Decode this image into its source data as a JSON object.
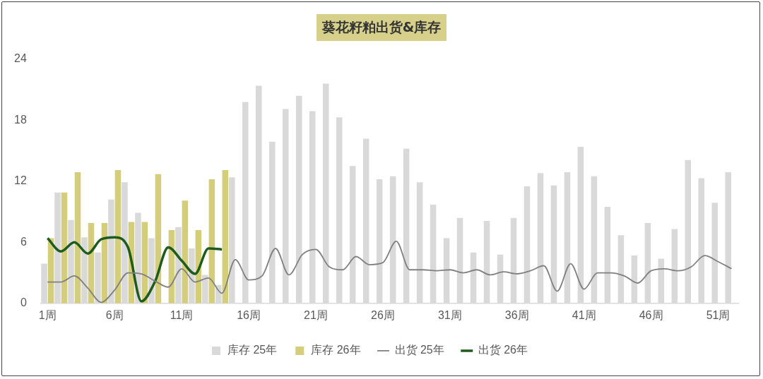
{
  "chart_data": {
    "type": "bar",
    "title": "葵花籽粕出货&库存",
    "categories": [
      "1周",
      null,
      null,
      null,
      null,
      "6周",
      null,
      null,
      null,
      null,
      "11周",
      null,
      null,
      null,
      null,
      "16周",
      null,
      null,
      null,
      null,
      "21周",
      null,
      null,
      null,
      null,
      "26周",
      null,
      null,
      null,
      null,
      "31周",
      null,
      null,
      null,
      null,
      "36周",
      null,
      null,
      null,
      null,
      "41周",
      null,
      null,
      null,
      null,
      "46周",
      null,
      null,
      null,
      null,
      "51周",
      null
    ],
    "ylim": [
      0,
      24
    ],
    "yticks": [
      0,
      6,
      12,
      18,
      24
    ],
    "grid": false,
    "legend": "bottom",
    "series": [
      {
        "name": "库存 25年",
        "color": "#d9d9d9",
        "values": [
          3.9,
          10.9,
          8.2,
          6.5,
          5.0,
          10.2,
          11.9,
          8.9,
          6.4,
          null,
          7.5,
          5.4,
          2.8,
          1.8,
          12.4,
          19.8,
          21.4,
          15.9,
          19.1,
          20.4,
          18.9,
          21.6,
          18.3,
          13.5,
          16.2,
          12.2,
          12.5,
          15.2,
          11.9,
          9.7,
          6.4,
          8.4,
          5.0,
          8.1,
          4.8,
          8.4,
          11.5,
          12.8,
          11.6,
          12.9,
          15.4,
          12.5,
          9.5,
          6.7,
          4.7,
          7.9,
          4.4,
          7.3,
          14.1,
          12.3,
          9.9,
          12.9
        ]
      },
      {
        "name": "库存 26年",
        "color": "#d4cd7c",
        "values": [
          6.4,
          10.9,
          12.9,
          7.9,
          7.9,
          13.1,
          8.0,
          8.0,
          12.7,
          7.2,
          10.1,
          7.2,
          12.2,
          13.1,
          null,
          null,
          null,
          null,
          null,
          null,
          null,
          null,
          null,
          null,
          null,
          null,
          null,
          null,
          null,
          null,
          null,
          null,
          null,
          null,
          null,
          null,
          null,
          null,
          null,
          null,
          null,
          null,
          null,
          null,
          null,
          null,
          null,
          null,
          null,
          null,
          null,
          null
        ]
      },
      {
        "name": "出货 25年",
        "type": "line",
        "color": "#808080",
        "values": [
          2.1,
          2.1,
          2.7,
          1.5,
          0.1,
          1.3,
          3.0,
          2.9,
          2.2,
          1.6,
          3.4,
          2.1,
          2.5,
          1.0,
          4.3,
          2.3,
          2.7,
          5.4,
          2.8,
          4.8,
          5.3,
          3.6,
          3.3,
          4.6,
          3.8,
          4.0,
          6.1,
          3.3,
          3.3,
          3.2,
          3.3,
          3.0,
          3.3,
          2.8,
          3.1,
          2.9,
          3.2,
          3.7,
          1.2,
          3.9,
          1.4,
          3.0,
          3.0,
          2.7,
          2.0,
          3.2,
          3.4,
          3.2,
          3.6,
          4.7,
          4.1,
          3.4
        ]
      },
      {
        "name": "出货 26年",
        "type": "line",
        "color": "#1e5c1e",
        "values": [
          6.4,
          5.1,
          6.0,
          4.9,
          6.3,
          6.5,
          5.5,
          0.2,
          2.1,
          5.5,
          4.2,
          2.9,
          5.4,
          5.3,
          null,
          null,
          null,
          null,
          null,
          null,
          null,
          null,
          null,
          null,
          null,
          null,
          null,
          null,
          null,
          null,
          null,
          null,
          null,
          null,
          null,
          null,
          null,
          null,
          null,
          null,
          null,
          null,
          null,
          null,
          null,
          null,
          null,
          null,
          null,
          null,
          null,
          null
        ]
      }
    ]
  }
}
